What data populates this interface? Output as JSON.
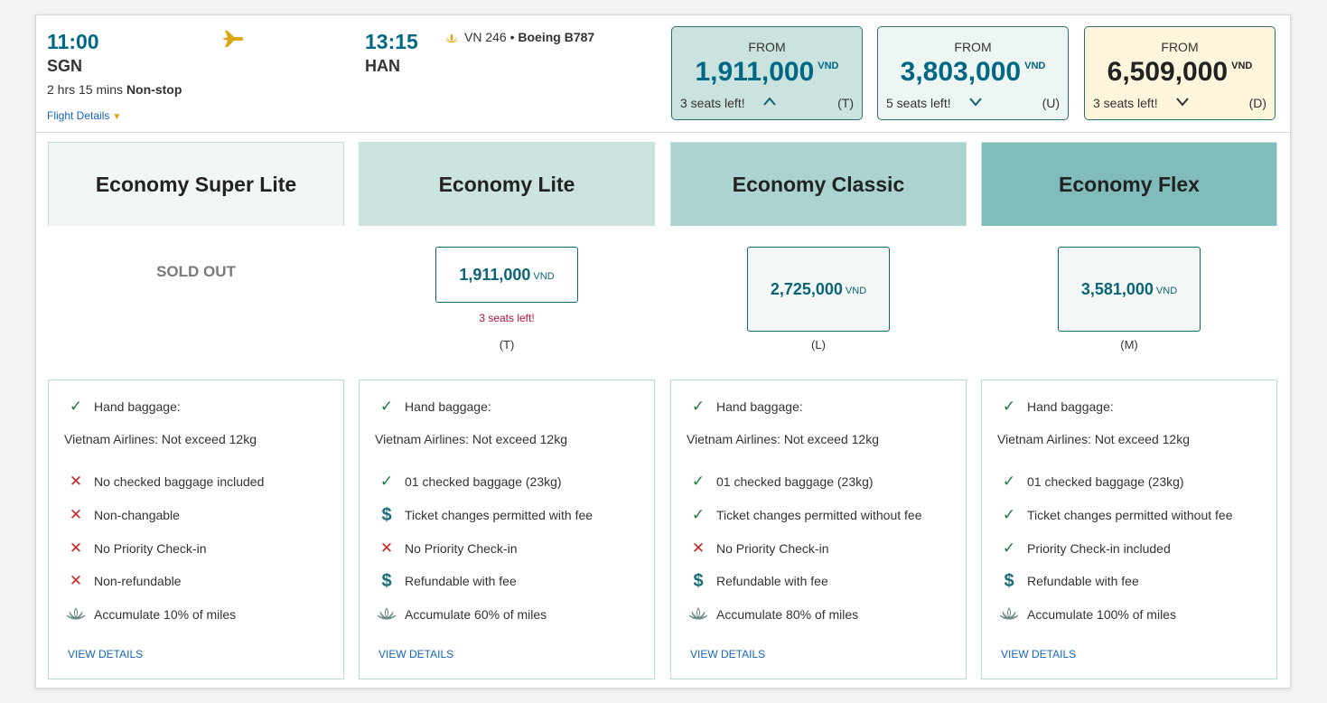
{
  "flight": {
    "dep_time": "11:00",
    "dep_city": "SGN",
    "duration": "2 hrs 15 mins",
    "stops": "Non-stop",
    "details_link": "Flight Details",
    "arr_time": "13:15",
    "arr_city": "HAN",
    "flight_no": "VN 246",
    "bullet": "•",
    "aircraft": "Boeing B787",
    "icons": [
      "plane-icon",
      "lotus-icon",
      "caret-down-icon"
    ]
  },
  "fare_summary": [
    {
      "from": "FROM",
      "price": "1,911,000",
      "currency": "VND",
      "seats": "3 seats left!",
      "class": "(T)",
      "chevron": "chevron-up-icon",
      "bg": "#cbe3df"
    },
    {
      "from": "FROM",
      "price": "3,803,000",
      "currency": "VND",
      "seats": "5 seats left!",
      "class": "(U)",
      "chevron": "chevron-down-icon",
      "bg": "#eef6f4"
    },
    {
      "from": "FROM",
      "price": "6,509,000",
      "currency": "VND",
      "seats": "3 seats left!",
      "class": "(D)",
      "chevron": "chevron-down-icon",
      "bg": "#fdf6dc"
    }
  ],
  "fares": [
    {
      "name": "Economy Super Lite",
      "header_bg": "#f0f7f5",
      "status": "SOLD OUT",
      "hand_label": "Hand baggage:",
      "hand_detail": "Vietnam Airlines: Not exceed 12kg",
      "features": [
        {
          "icon": "cross",
          "text": "No checked baggage included"
        },
        {
          "icon": "cross",
          "text": "Non-changable"
        },
        {
          "icon": "cross",
          "text": "No Priority Check-in"
        },
        {
          "icon": "cross",
          "text": "Non-refundable"
        },
        {
          "icon": "lotus",
          "text": "Accumulate 10% of miles"
        }
      ],
      "view": "VIEW DETAILS"
    },
    {
      "name": "Economy Lite",
      "header_bg": "#cce4e0",
      "price": "1,911,000",
      "currency": "VND",
      "seats": "3 seats left!",
      "code": "(T)",
      "hand_label": "Hand baggage:",
      "hand_detail": "Vietnam Airlines: Not exceed 12kg",
      "features": [
        {
          "icon": "check",
          "text": "01 checked baggage (23kg)"
        },
        {
          "icon": "dollar",
          "text": "Ticket changes permitted with fee"
        },
        {
          "icon": "cross",
          "text": "No Priority Check-in"
        },
        {
          "icon": "dollar",
          "text": "Refundable with fee"
        },
        {
          "icon": "lotus",
          "text": "Accumulate 60% of miles"
        }
      ],
      "view": "VIEW DETAILS"
    },
    {
      "name": "Economy Classic",
      "header_bg": "#abd4d0",
      "price": "2,725,000",
      "currency": "VND",
      "code": "(L)",
      "hand_label": "Hand baggage:",
      "hand_detail": "Vietnam Airlines: Not exceed 12kg",
      "features": [
        {
          "icon": "check",
          "text": "01 checked baggage (23kg)"
        },
        {
          "icon": "check",
          "text": "Ticket changes permitted without fee"
        },
        {
          "icon": "cross",
          "text": "No Priority Check-in"
        },
        {
          "icon": "dollar",
          "text": "Refundable with fee"
        },
        {
          "icon": "lotus",
          "text": "Accumulate 80% of miles"
        }
      ],
      "view": "VIEW DETAILS"
    },
    {
      "name": "Economy Flex",
      "header_bg": "#80bcbb",
      "price": "3,581,000",
      "currency": "VND",
      "code": "(M)",
      "hand_label": "Hand baggage:",
      "hand_detail": "Vietnam Airlines: Not exceed 12kg",
      "features": [
        {
          "icon": "check",
          "text": "01 checked baggage (23kg)"
        },
        {
          "icon": "check",
          "text": "Ticket changes permitted without fee"
        },
        {
          "icon": "check",
          "text": "Priority Check-in included"
        },
        {
          "icon": "dollar",
          "text": "Refundable with fee"
        },
        {
          "icon": "lotus",
          "text": "Accumulate 100% of miles"
        }
      ],
      "view": "VIEW DETAILS"
    }
  ],
  "colors": {
    "accent": "#006885",
    "price_text": "#0c6477",
    "warning": "#b0133b",
    "link": "#1565c0",
    "gold": "#dba617"
  }
}
